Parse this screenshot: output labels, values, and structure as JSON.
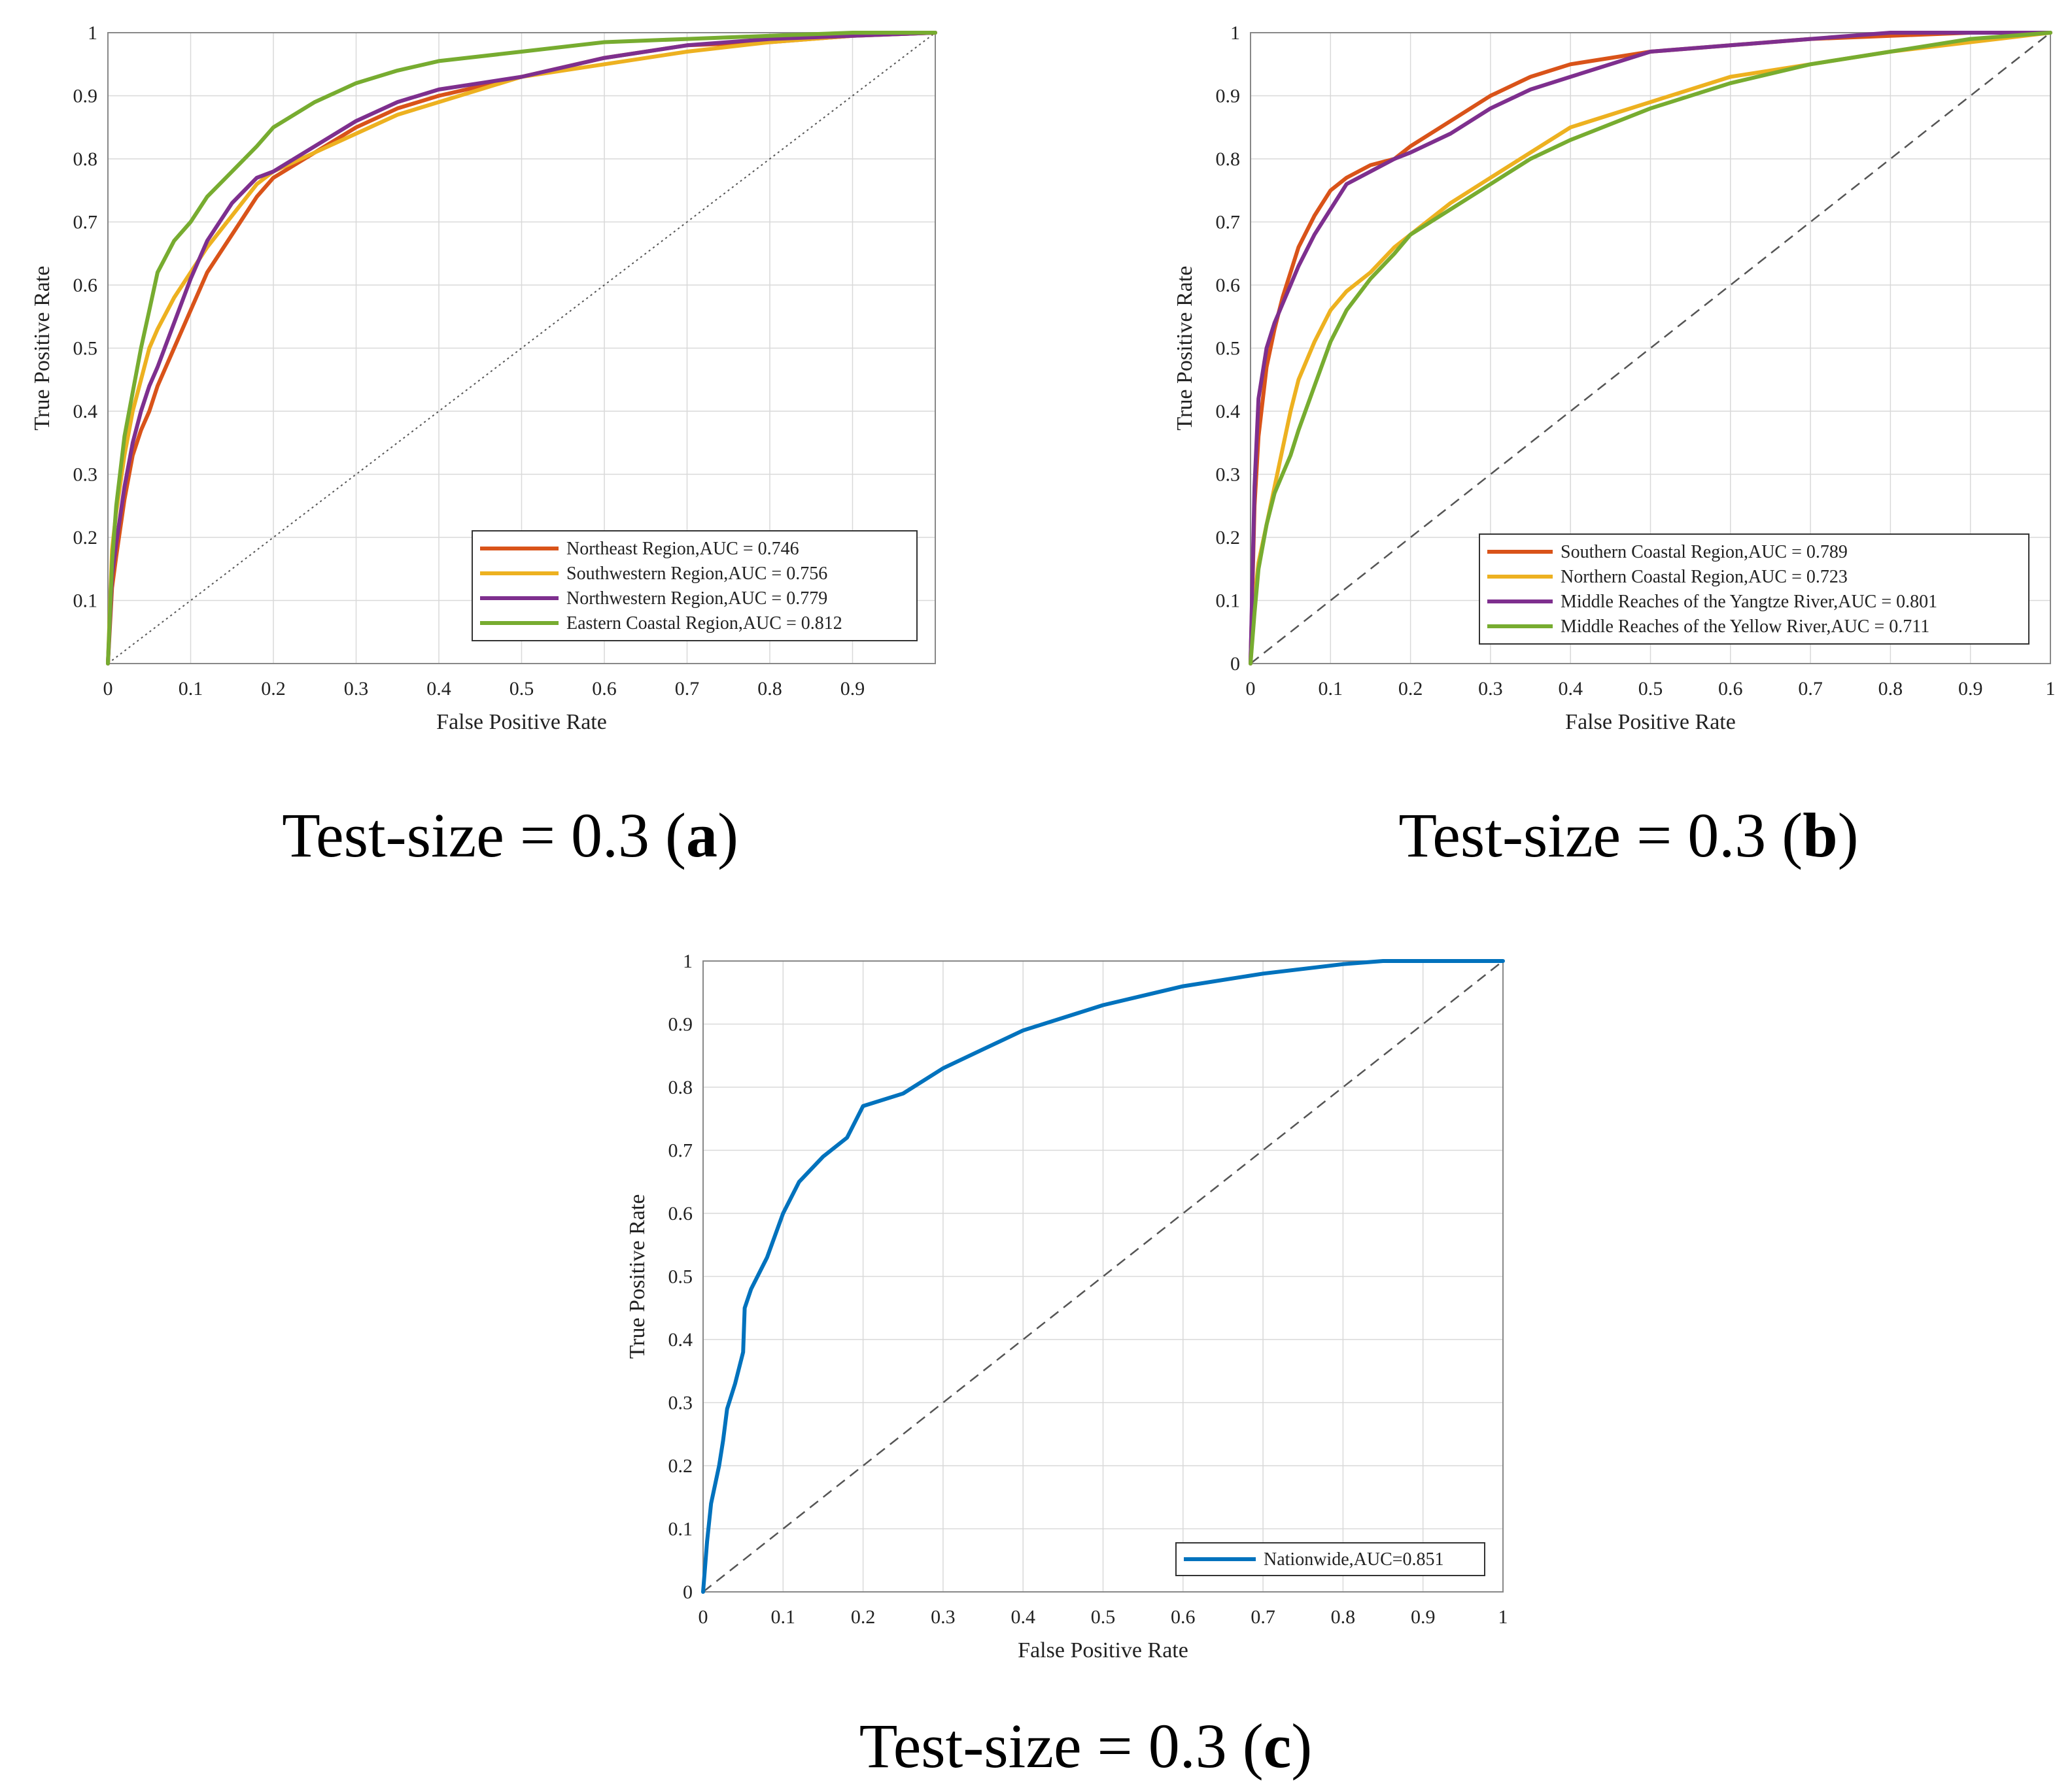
{
  "colors": {
    "northeast": "#D95319",
    "southwestern": "#EDB120",
    "northwestern": "#7E2F8E",
    "eastern_coastal": "#77AC30",
    "nationwide": "#0072BD",
    "grid": "#d9d9d9",
    "axis": "#444444",
    "diagonal": "#555555"
  },
  "chart_data": [
    {
      "id": "a",
      "type": "line",
      "xlabel": "False Positive Rate",
      "ylabel": "True Positive Rate",
      "xlim": [
        0,
        1
      ],
      "ylim": [
        0,
        1
      ],
      "xticks": [
        "0",
        "0.1",
        "0.2",
        "0.3",
        "0.4",
        "0.5",
        "0.6",
        "0.7",
        "0.8",
        "0.9"
      ],
      "yticks": [
        "0.1",
        "0.2",
        "0.3",
        "0.4",
        "0.5",
        "0.6",
        "0.7",
        "0.8",
        "0.9",
        "1"
      ],
      "grid": true,
      "legend_position": "bottom-right",
      "caption": {
        "prefix": "Test-size = 0.3 (",
        "letter": "a",
        "suffix": ")"
      },
      "diagonal_style": "dotted",
      "series": [
        {
          "name": "Northeast Region,AUC = 0.746",
          "color_key": "northeast",
          "x": [
            0,
            0.005,
            0.01,
            0.02,
            0.03,
            0.04,
            0.05,
            0.06,
            0.08,
            0.1,
            0.12,
            0.15,
            0.18,
            0.2,
            0.25,
            0.3,
            0.35,
            0.4,
            0.5,
            0.6,
            0.7,
            0.8,
            0.9,
            1.0
          ],
          "y": [
            0,
            0.12,
            0.17,
            0.26,
            0.33,
            0.37,
            0.4,
            0.44,
            0.5,
            0.56,
            0.62,
            0.68,
            0.74,
            0.77,
            0.81,
            0.85,
            0.88,
            0.9,
            0.93,
            0.96,
            0.98,
            0.985,
            0.995,
            1.0
          ]
        },
        {
          "name": "Southwestern Region,AUC = 0.756",
          "color_key": "southwestern",
          "x": [
            0,
            0.005,
            0.01,
            0.02,
            0.03,
            0.04,
            0.05,
            0.06,
            0.08,
            0.1,
            0.12,
            0.15,
            0.18,
            0.2,
            0.25,
            0.3,
            0.35,
            0.4,
            0.5,
            0.6,
            0.7,
            0.8,
            0.9,
            1.0
          ],
          "y": [
            0,
            0.18,
            0.24,
            0.33,
            0.4,
            0.45,
            0.5,
            0.53,
            0.58,
            0.62,
            0.66,
            0.71,
            0.76,
            0.78,
            0.81,
            0.84,
            0.87,
            0.89,
            0.93,
            0.95,
            0.97,
            0.985,
            0.995,
            1.0
          ]
        },
        {
          "name": "Northwestern Region,AUC = 0.779",
          "color_key": "northwestern",
          "x": [
            0,
            0.005,
            0.01,
            0.02,
            0.03,
            0.04,
            0.05,
            0.06,
            0.08,
            0.1,
            0.12,
            0.15,
            0.18,
            0.2,
            0.25,
            0.3,
            0.35,
            0.4,
            0.5,
            0.6,
            0.7,
            0.8,
            0.9,
            1.0
          ],
          "y": [
            0,
            0.14,
            0.19,
            0.28,
            0.35,
            0.4,
            0.44,
            0.47,
            0.54,
            0.61,
            0.67,
            0.73,
            0.77,
            0.78,
            0.82,
            0.86,
            0.89,
            0.91,
            0.93,
            0.96,
            0.98,
            0.99,
            0.995,
            1.0
          ]
        },
        {
          "name": "Eastern Coastal Region,AUC = 0.812",
          "color_key": "eastern_coastal",
          "x": [
            0,
            0.005,
            0.01,
            0.02,
            0.03,
            0.04,
            0.05,
            0.06,
            0.08,
            0.1,
            0.12,
            0.15,
            0.18,
            0.2,
            0.25,
            0.3,
            0.35,
            0.4,
            0.5,
            0.6,
            0.7,
            0.8,
            0.9,
            1.0
          ],
          "y": [
            0,
            0.16,
            0.25,
            0.36,
            0.43,
            0.5,
            0.56,
            0.62,
            0.67,
            0.7,
            0.74,
            0.78,
            0.82,
            0.85,
            0.89,
            0.92,
            0.94,
            0.955,
            0.97,
            0.985,
            0.99,
            0.995,
            1.0,
            1.0
          ]
        }
      ]
    },
    {
      "id": "b",
      "type": "line",
      "xlabel": "False Positive Rate",
      "ylabel": "True Positive Rate",
      "xlim": [
        0,
        1
      ],
      "ylim": [
        0,
        1
      ],
      "xticks": [
        "0",
        "0.1",
        "0.2",
        "0.3",
        "0.4",
        "0.5",
        "0.6",
        "0.7",
        "0.8",
        "0.9",
        "1"
      ],
      "yticks": [
        "0",
        "0.1",
        "0.2",
        "0.3",
        "0.4",
        "0.5",
        "0.6",
        "0.7",
        "0.8",
        "0.9",
        "1"
      ],
      "grid": true,
      "legend_position": "bottom-right",
      "caption": {
        "prefix": "Test-size = 0.3 (",
        "letter": "b",
        "suffix": ")"
      },
      "diagonal_style": "dashed",
      "series": [
        {
          "name": "Southern Coastal Region,AUC = 0.789",
          "color_key": "northeast",
          "x": [
            0,
            0.005,
            0.01,
            0.02,
            0.03,
            0.04,
            0.05,
            0.06,
            0.08,
            0.1,
            0.12,
            0.15,
            0.18,
            0.2,
            0.25,
            0.3,
            0.35,
            0.4,
            0.5,
            0.6,
            0.7,
            0.8,
            0.9,
            1.0
          ],
          "y": [
            0,
            0.25,
            0.36,
            0.47,
            0.53,
            0.58,
            0.62,
            0.66,
            0.71,
            0.75,
            0.77,
            0.79,
            0.8,
            0.82,
            0.86,
            0.9,
            0.93,
            0.95,
            0.97,
            0.98,
            0.99,
            0.995,
            1.0,
            1.0
          ]
        },
        {
          "name": "Northern Coastal Region,AUC = 0.723",
          "color_key": "southwestern",
          "x": [
            0,
            0.005,
            0.01,
            0.02,
            0.03,
            0.04,
            0.05,
            0.06,
            0.08,
            0.1,
            0.12,
            0.15,
            0.18,
            0.2,
            0.25,
            0.3,
            0.35,
            0.4,
            0.5,
            0.6,
            0.7,
            0.8,
            0.9,
            1.0
          ],
          "y": [
            0,
            0.1,
            0.16,
            0.22,
            0.28,
            0.34,
            0.4,
            0.45,
            0.51,
            0.56,
            0.59,
            0.62,
            0.66,
            0.68,
            0.73,
            0.77,
            0.81,
            0.85,
            0.89,
            0.93,
            0.95,
            0.97,
            0.985,
            1.0
          ]
        },
        {
          "name": "Middle Reaches of the Yangtze River,AUC = 0.801",
          "color_key": "northwestern",
          "x": [
            0,
            0.005,
            0.01,
            0.02,
            0.03,
            0.04,
            0.05,
            0.06,
            0.08,
            0.1,
            0.12,
            0.15,
            0.18,
            0.2,
            0.25,
            0.3,
            0.35,
            0.4,
            0.5,
            0.6,
            0.7,
            0.8,
            0.9,
            1.0
          ],
          "y": [
            0,
            0.28,
            0.42,
            0.5,
            0.54,
            0.57,
            0.6,
            0.63,
            0.68,
            0.72,
            0.76,
            0.78,
            0.8,
            0.81,
            0.84,
            0.88,
            0.91,
            0.93,
            0.97,
            0.98,
            0.99,
            1.0,
            1.0,
            1.0
          ]
        },
        {
          "name": "Middle Reaches of the Yellow River,AUC = 0.711",
          "color_key": "eastern_coastal",
          "x": [
            0,
            0.005,
            0.01,
            0.02,
            0.03,
            0.04,
            0.05,
            0.06,
            0.08,
            0.1,
            0.12,
            0.15,
            0.18,
            0.2,
            0.25,
            0.3,
            0.35,
            0.4,
            0.5,
            0.6,
            0.7,
            0.8,
            0.9,
            1.0
          ],
          "y": [
            0,
            0.08,
            0.15,
            0.22,
            0.27,
            0.3,
            0.33,
            0.37,
            0.44,
            0.51,
            0.56,
            0.61,
            0.65,
            0.68,
            0.72,
            0.76,
            0.8,
            0.83,
            0.88,
            0.92,
            0.95,
            0.97,
            0.99,
            1.0
          ]
        }
      ]
    },
    {
      "id": "c",
      "type": "line",
      "xlabel": "False Positive Rate",
      "ylabel": "True Positive Rate",
      "xlim": [
        0,
        1
      ],
      "ylim": [
        0,
        1
      ],
      "xticks": [
        "0",
        "0.1",
        "0.2",
        "0.3",
        "0.4",
        "0.5",
        "0.6",
        "0.7",
        "0.8",
        "0.9",
        "1"
      ],
      "yticks": [
        "0",
        "0.1",
        "0.2",
        "0.3",
        "0.4",
        "0.5",
        "0.6",
        "0.7",
        "0.8",
        "0.9",
        "1"
      ],
      "grid": true,
      "legend_position": "bottom-right",
      "caption": {
        "prefix": "Test-size = 0.3 (",
        "letter": "c",
        "suffix": ")"
      },
      "diagonal_style": "dashed",
      "series": [
        {
          "name": "Nationwide,AUC=0.851",
          "color_key": "nationwide",
          "x": [
            0,
            0.005,
            0.01,
            0.02,
            0.025,
            0.03,
            0.04,
            0.05,
            0.052,
            0.06,
            0.08,
            0.1,
            0.12,
            0.15,
            0.18,
            0.2,
            0.25,
            0.3,
            0.35,
            0.4,
            0.5,
            0.6,
            0.7,
            0.8,
            0.85,
            0.9,
            1.0
          ],
          "y": [
            0,
            0.08,
            0.14,
            0.2,
            0.24,
            0.29,
            0.33,
            0.38,
            0.45,
            0.48,
            0.53,
            0.6,
            0.65,
            0.69,
            0.72,
            0.77,
            0.79,
            0.83,
            0.86,
            0.89,
            0.93,
            0.96,
            0.98,
            0.995,
            1.0,
            1.0,
            1.0
          ]
        }
      ]
    }
  ]
}
